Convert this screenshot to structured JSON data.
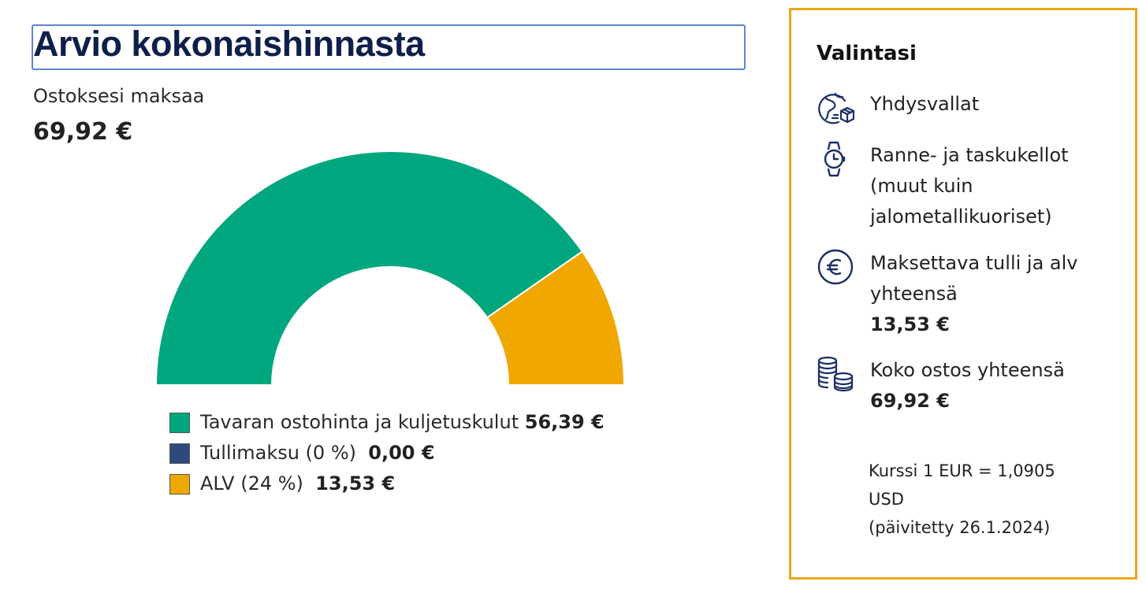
{
  "header": {
    "title": "Arvio kokonaishinnasta",
    "subtitle": "Ostoksesi maksaa",
    "total": "69,92 €"
  },
  "chart_data": {
    "type": "pie",
    "shape": "half-donut",
    "categories": [
      "Tavaran ostohinta ja kuljetuskulut",
      "Tullimaksu (0 %)",
      "ALV (24 %)"
    ],
    "values": [
      56.39,
      0.0,
      13.53
    ],
    "colors": [
      "#00a77e",
      "#2d4a7c",
      "#f0a800"
    ]
  },
  "legend": [
    {
      "label": "Tavaran ostohinta ja kuljetuskulut",
      "value": "56,39 €",
      "color": "#00a77e"
    },
    {
      "label": "Tullimaksu (0 %)",
      "value": "0,00 €",
      "color": "#2d4a7c"
    },
    {
      "label": "ALV (24 %)",
      "value": "13,53 €",
      "color": "#f0a800"
    }
  ],
  "panel": {
    "title": "Valintasi",
    "country": {
      "icon": "globe-package-icon",
      "text": "Yhdysvallat"
    },
    "product": {
      "icon": "wristwatch-icon",
      "lines": [
        "Ranne- ja taskukellot",
        "(muut kuin",
        "jalometallikuoriset)"
      ]
    },
    "duty": {
      "icon": "euro-circle-icon",
      "lines": [
        "Maksettava tulli ja alv",
        "yhteensä"
      ],
      "value": "13,53 €"
    },
    "total": {
      "icon": "coin-stack-icon",
      "label": "Koko ostos yhteensä",
      "value": "69,92 €"
    },
    "rate": [
      "Kurssi 1 EUR = 1,0905",
      "USD",
      "(päivitetty 26.1.2024)"
    ]
  },
  "colors": {
    "accent_border": "#eaa816",
    "title": "#0f1f4a",
    "icon": "#1b2f66"
  }
}
